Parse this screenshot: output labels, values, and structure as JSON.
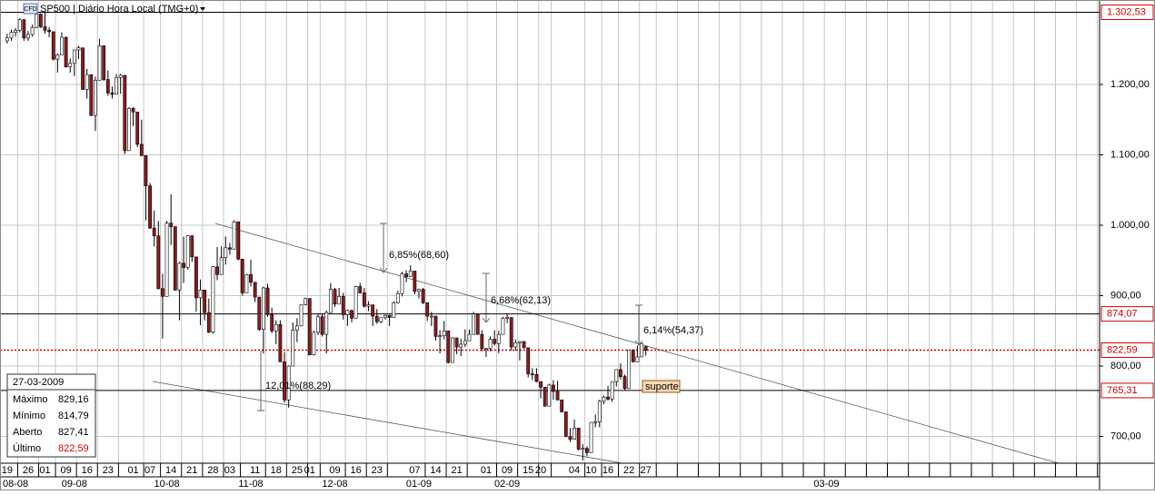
{
  "header": {
    "icon": "CFD",
    "title": "SP500 | Diário Hora Local (TMG+0)"
  },
  "info_box": {
    "date": "27-03-2009",
    "rows": [
      {
        "label": "Máximo",
        "value": "829,16"
      },
      {
        "label": "Mínimo",
        "value": "814,79"
      },
      {
        "label": "Aberto",
        "value": "827,41"
      },
      {
        "label": "Último",
        "value": "822,59"
      }
    ]
  },
  "chart_data": {
    "type": "candlestick",
    "up_color": "#ffffff",
    "down_color": "#8b1a1a",
    "wick_color": "#000000",
    "grid": true,
    "xlim": [
      -1.7,
      260
    ],
    "ylim": [
      662,
      1320
    ],
    "yticks": [
      {
        "value": 700,
        "label": "700,00"
      },
      {
        "value": 800,
        "label": "800,00"
      },
      {
        "value": 900,
        "label": "900,00"
      },
      {
        "value": 1000,
        "label": "1.000,00"
      },
      {
        "value": 1100,
        "label": "1.100,00"
      },
      {
        "value": 1200,
        "label": "1.200,00"
      }
    ],
    "xticks": [
      {
        "value": 0,
        "label": "19"
      },
      {
        "value": 5,
        "label": "26"
      },
      {
        "value": 9,
        "label": "01"
      },
      {
        "value": 14,
        "label": "09"
      },
      {
        "value": 19,
        "label": "16"
      },
      {
        "value": 24,
        "label": "23"
      },
      {
        "value": 30,
        "label": "01"
      },
      {
        "value": 34,
        "label": "07"
      },
      {
        "value": 39,
        "label": "14"
      },
      {
        "value": 44,
        "label": "21"
      },
      {
        "value": 49,
        "label": "28"
      },
      {
        "value": 53,
        "label": "03"
      },
      {
        "value": 59,
        "label": "11"
      },
      {
        "value": 64,
        "label": "18"
      },
      {
        "value": 69,
        "label": "25"
      },
      {
        "value": 72,
        "label": "01"
      },
      {
        "value": 78,
        "label": "09"
      },
      {
        "value": 83,
        "label": "16"
      },
      {
        "value": 88,
        "label": "23"
      },
      {
        "value": 97,
        "label": "07"
      },
      {
        "value": 102,
        "label": "14"
      },
      {
        "value": 107,
        "label": "21"
      },
      {
        "value": 114,
        "label": "01"
      },
      {
        "value": 119,
        "label": "09"
      },
      {
        "value": 124,
        "label": "15"
      },
      {
        "value": 127,
        "label": "20"
      },
      {
        "value": 135,
        "label": "04"
      },
      {
        "value": 139,
        "label": "10"
      },
      {
        "value": 143,
        "label": "16"
      },
      {
        "value": 148,
        "label": "22"
      },
      {
        "value": 152,
        "label": "27"
      }
    ],
    "x_month_ticks": [
      {
        "value": 2,
        "label": "08-08"
      },
      {
        "value": 16,
        "label": "09-08"
      },
      {
        "value": 38,
        "label": "10-08"
      },
      {
        "value": 58,
        "label": "11-08"
      },
      {
        "value": 78,
        "label": "12-08"
      },
      {
        "value": 98,
        "label": "01-09"
      },
      {
        "value": 119,
        "label": "02-09"
      },
      {
        "value": 195,
        "label": "03-09"
      }
    ],
    "levels": [
      {
        "value": 1302.53,
        "label": "1.302,53",
        "color": "#000000",
        "dashed": false
      },
      {
        "value": 874.07,
        "label": "874,07",
        "color": "#000000",
        "dashed": false
      },
      {
        "value": 822.59,
        "label": "822,59",
        "color": "#d00000",
        "dashed": true
      },
      {
        "value": 765.31,
        "label": "765,31",
        "color": "#000000",
        "dashed": false
      }
    ],
    "annotations": [
      "6,85%(68,60)",
      "6,68%(62,13)",
      "6,14%(54,37)",
      "12,01%(88,29)",
      "suporte"
    ],
    "open": [
      1262,
      1266,
      1274,
      1277,
      1292,
      1266,
      1271,
      1281,
      1300,
      1282,
      1277,
      1275,
      1236,
      1242,
      1267,
      1225,
      1230,
      1249,
      1252,
      1193,
      1214,
      1156,
      1206,
      1255,
      1207,
      1188,
      1186,
      1210,
      1213,
      1106,
      1166,
      1161,
      1115,
      1099,
      1056,
      996,
      985,
      910,
      899,
      1003,
      998,
      908,
      946,
      940,
      985,
      955,
      897,
      908,
      876,
      848,
      941,
      930,
      954,
      968,
      966,
      1005,
      952,
      904,
      930,
      919,
      898,
      852,
      911,
      873,
      850,
      859,
      806,
      752,
      800,
      851,
      857,
      887,
      896,
      816,
      848,
      870,
      845,
      876,
      909,
      888,
      899,
      873,
      879,
      868,
      913,
      904,
      885,
      887,
      871,
      863,
      869,
      872,
      869,
      890,
      903,
      931,
      927,
      935,
      906,
      909,
      890,
      871,
      871,
      842,
      843,
      850,
      805,
      840,
      827,
      831,
      836,
      845,
      874,
      845,
      825,
      825,
      838,
      832,
      845,
      868,
      869,
      827,
      833,
      835,
      826,
      789,
      788,
      778,
      770,
      743,
      773,
      764,
      752,
      735,
      700,
      696,
      712,
      682,
      683,
      677,
      720,
      721,
      750,
      756,
      753,
      778,
      795,
      785,
      768,
      823,
      806,
      813,
      827.41
    ],
    "high": [
      1272,
      1278,
      1280,
      1294,
      1293,
      1276,
      1285,
      1302,
      1301,
      1303,
      1281,
      1275,
      1244,
      1274,
      1268,
      1237,
      1249,
      1255,
      1252,
      1222,
      1214,
      1211,
      1265,
      1255,
      1220,
      1197,
      1215,
      1215,
      1213,
      1168,
      1168,
      1161,
      1150,
      1099,
      1060,
      1021,
      1006,
      931,
      1006,
      1044,
      998,
      948,
      984,
      986,
      986,
      955,
      923,
      908,
      896,
      942,
      969,
      970,
      984,
      975,
      1007,
      1005,
      952,
      931,
      951,
      919,
      898,
      913,
      917,
      883,
      865,
      865,
      820,
      801,
      862,
      868,
      887,
      897,
      896,
      850,
      875,
      875,
      879,
      918,
      911,
      911,
      904,
      880,
      880,
      914,
      918,
      911,
      892,
      887,
      881,
      869,
      873,
      873,
      892,
      907,
      934,
      936,
      943,
      935,
      910,
      911,
      890,
      877,
      871,
      851,
      864,
      850,
      841,
      840,
      839,
      852,
      852,
      877,
      874,
      851,
      825,
      842,
      851,
      850,
      870,
      875,
      869,
      838,
      835,
      835,
      826,
      797,
      797,
      778,
      770,
      775,
      780,
      779,
      752,
      735,
      712,
      724,
      712,
      689,
      686,
      720,
      731,
      752,
      758,
      772,
      778,
      795,
      804,
      788,
      823,
      823,
      829,
      833,
      829.16
    ],
    "low": [
      1258,
      1262,
      1268,
      1274,
      1262,
      1262,
      1268,
      1280,
      1280,
      1272,
      1267,
      1234,
      1217,
      1242,
      1224,
      1217,
      1212,
      1236,
      1192,
      1180,
      1155,
      1134,
      1206,
      1205,
      1184,
      1180,
      1186,
      1187,
      1101,
      1106,
      1141,
      1111,
      1098,
      1007,
      995,
      970,
      909,
      839,
      899,
      972,
      907,
      865,
      918,
      937,
      948,
      877,
      858,
      865,
      847,
      846,
      922,
      930,
      944,
      958,
      966,
      950,
      900,
      904,
      913,
      891,
      850,
      818,
      870,
      847,
      831,
      806,
      748,
      741,
      800,
      834,
      857,
      886,
      815,
      815,
      844,
      842,
      818,
      876,
      884,
      888,
      866,
      857,
      862,
      868,
      903,
      883,
      878,
      857,
      860,
      861,
      866,
      857,
      869,
      889,
      899,
      919,
      927,
      902,
      896,
      888,
      864,
      857,
      836,
      818,
      838,
      804,
      805,
      817,
      814,
      827,
      836,
      845,
      845,
      821,
      813,
      821,
      829,
      818,
      845,
      861,
      822,
      822,
      808,
      825,
      784,
      780,
      777,
      754,
      743,
      743,
      752,
      751,
      734,
      699,
      692,
      696,
      680,
      666,
      672,
      677,
      713,
      713,
      746,
      751,
      749,
      771,
      781,
      766,
      768,
      805,
      806,
      813,
      814.79
    ],
    "close": [
      1266,
      1274,
      1277,
      1292,
      1266,
      1271,
      1281,
      1300,
      1282,
      1277,
      1275,
      1236,
      1242,
      1267,
      1225,
      1230,
      1249,
      1252,
      1193,
      1214,
      1156,
      1206,
      1255,
      1207,
      1188,
      1186,
      1210,
      1213,
      1106,
      1166,
      1161,
      1115,
      1099,
      1056,
      996,
      985,
      910,
      899,
      1003,
      998,
      908,
      946,
      940,
      985,
      955,
      897,
      908,
      876,
      848,
      941,
      930,
      954,
      968,
      966,
      1005,
      952,
      904,
      930,
      919,
      898,
      852,
      911,
      873,
      850,
      859,
      806,
      752,
      800,
      851,
      857,
      887,
      896,
      816,
      848,
      870,
      845,
      876,
      909,
      888,
      899,
      873,
      879,
      868,
      913,
      904,
      885,
      887,
      871,
      863,
      869,
      872,
      869,
      890,
      903,
      931,
      927,
      935,
      906,
      909,
      890,
      871,
      871,
      842,
      843,
      850,
      805,
      840,
      827,
      831,
      836,
      845,
      874,
      845,
      825,
      825,
      838,
      832,
      845,
      868,
      869,
      827,
      833,
      835,
      826,
      789,
      788,
      778,
      770,
      743,
      773,
      764,
      752,
      735,
      700,
      696,
      712,
      682,
      683,
      677,
      720,
      721,
      750,
      756,
      753,
      778,
      795,
      785,
      768,
      823,
      806,
      813,
      832,
      822.59
    ]
  }
}
